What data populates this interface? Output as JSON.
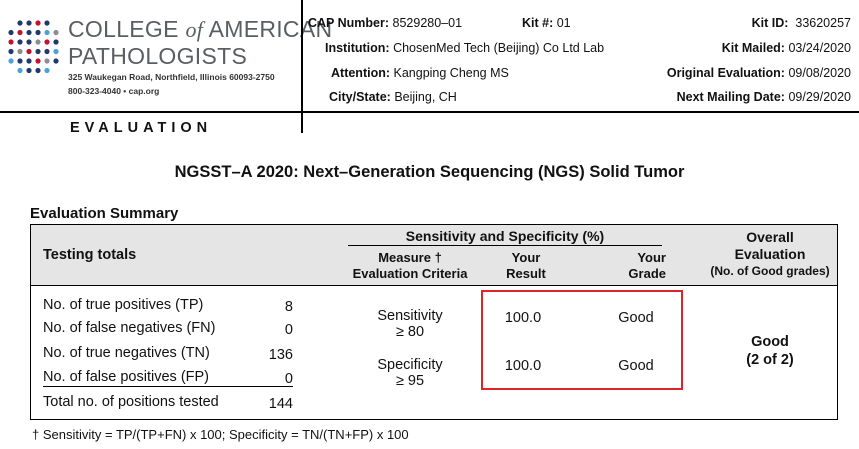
{
  "org": {
    "name_part1": "COLLEGE ",
    "name_of": "of",
    "name_part2": " AMERICAN",
    "name_line2": "PATHOLOGISTS",
    "address": "325 Waukegan Road, Northfield, Illinois 60093-2750",
    "contact": "800-323-4040  •  cap.org",
    "dot_colors": [
      "#c8102e",
      "#1f3a6b",
      "#4aa3d8",
      "#8a8d91"
    ]
  },
  "report_type": "EVALUATION",
  "header": {
    "cap_number_label": "CAP Number:",
    "cap_number": "8529280–01",
    "kit_number_label": "Kit #:",
    "kit_number": "01",
    "institution_label": "Institution:",
    "institution": "ChosenMed Tech (Beijing) Co Ltd Lab",
    "attention_label": "Attention:",
    "attention": "Kangping Cheng MS",
    "city_label": "City/State:",
    "city": "Beijing, CH",
    "kit_id_label": "Kit ID:",
    "kit_id": "33620257",
    "kit_mailed_label": "Kit Mailed:",
    "kit_mailed": "03/24/2020",
    "original_eval_label": "Original Evaluation:",
    "original_eval": "09/08/2020",
    "next_mailing_label": "Next Mailing Date:",
    "next_mailing": "09/29/2020"
  },
  "title": "NGSST–A 2020: Next–Generation Sequencing (NGS) Solid Tumor",
  "summary": {
    "section_title": "Evaluation Summary",
    "columns": {
      "testing_totals": "Testing totals",
      "group": "Sensitivity and Specificity (%)",
      "measure_line1": "Measure †",
      "measure_line2": "Evaluation Criteria",
      "your_result_line1": "Your",
      "your_result_line2": "Result",
      "your_grade_line1": "Your",
      "your_grade_line2": "Grade",
      "overall_line1": "Overall",
      "overall_line2": "Evaluation",
      "overall_line3": "(No. of Good grades)"
    },
    "totals": [
      {
        "label": "No. of true positives (TP)",
        "value": "8"
      },
      {
        "label": "No. of false negatives (FN)",
        "value": "0"
      },
      {
        "label": "No. of true negatives (TN)",
        "value": "136"
      },
      {
        "label": "No. of false positives (FP)",
        "value": "0"
      },
      {
        "label": "Total no. of positions tested",
        "value": "144"
      }
    ],
    "measures": [
      {
        "name": "Sensitivity",
        "criteria": "≥ 80",
        "result": "100.0",
        "grade": "Good"
      },
      {
        "name": "Specificity",
        "criteria": "≥ 95",
        "result": "100.0",
        "grade": "Good"
      }
    ],
    "overall_grade": "Good",
    "overall_count": "(2 of 2)",
    "highlight_color": "#e0232b"
  },
  "footnote": "† Sensitivity = TP/(TP+FN) x 100; Specificity = TN/(TN+FP) x 100"
}
